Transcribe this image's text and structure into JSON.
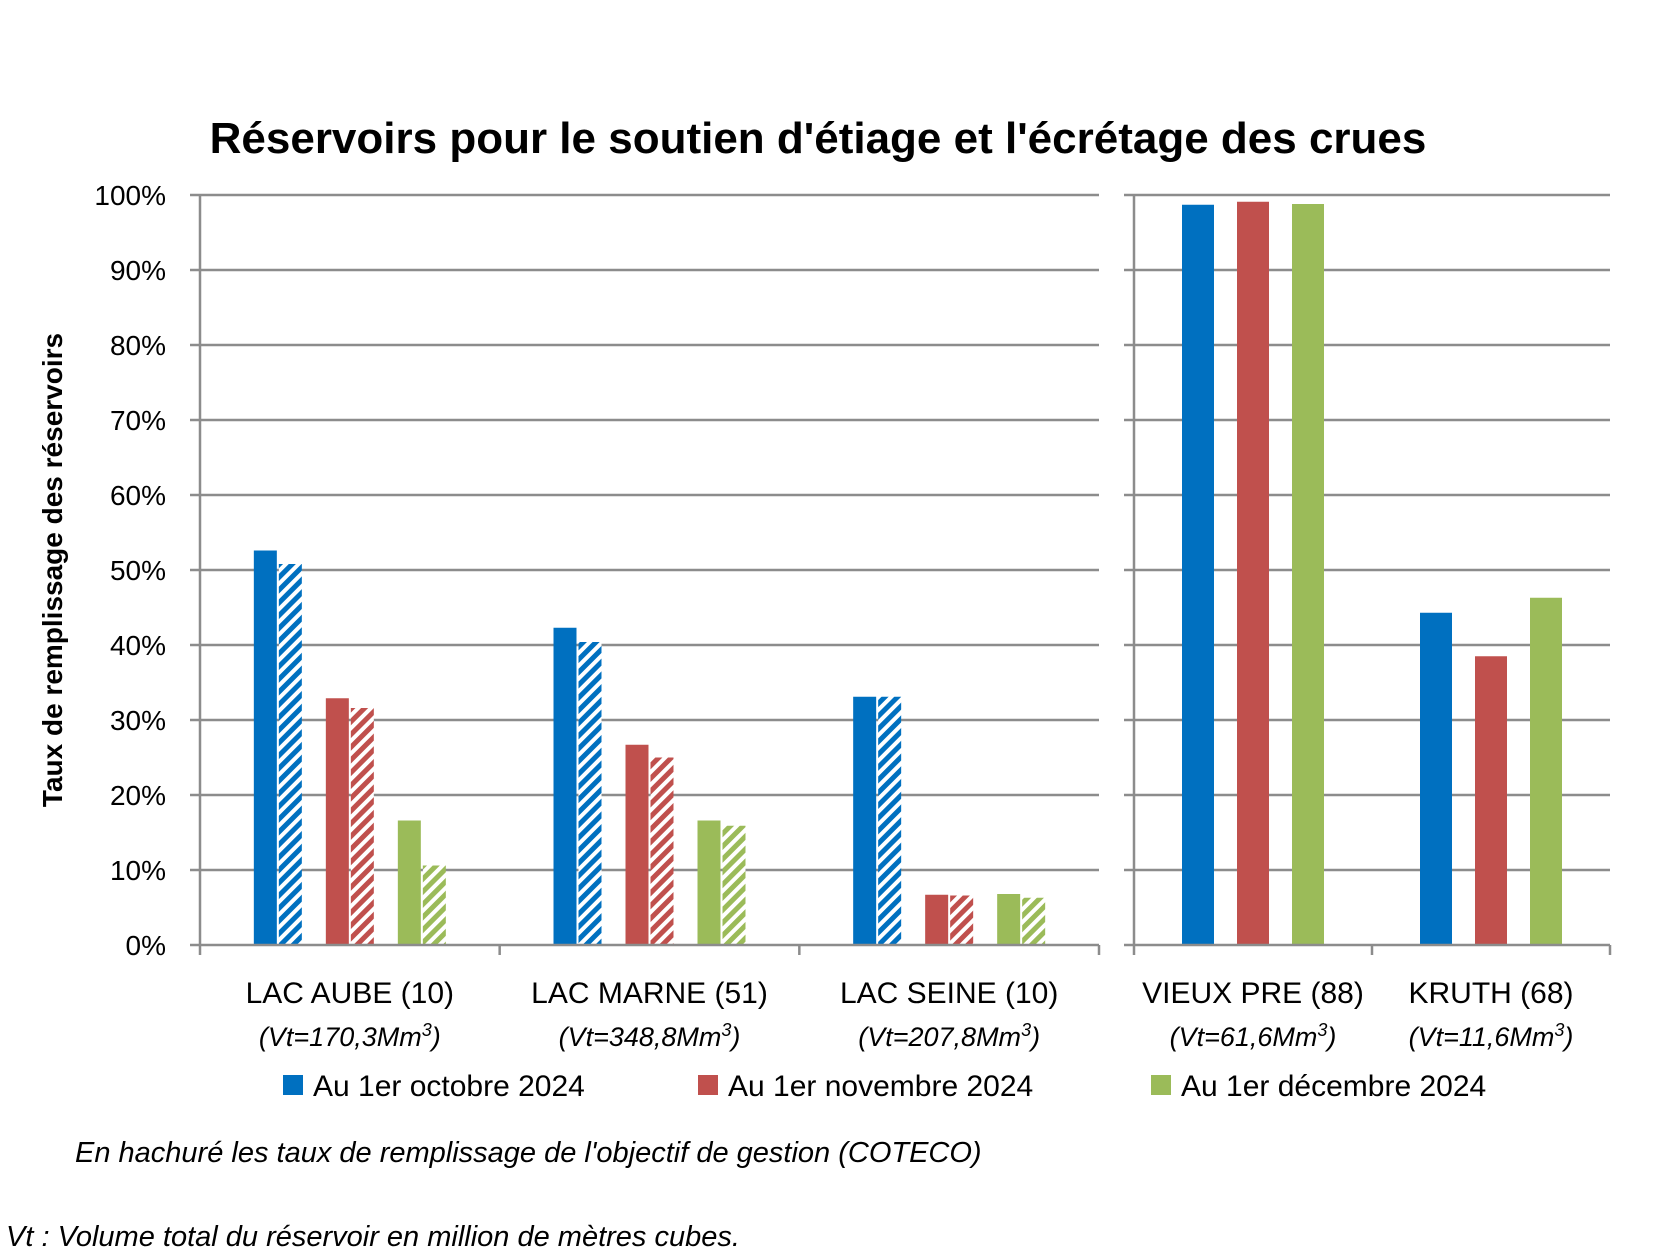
{
  "chart_data": {
    "type": "bar",
    "title": "Réservoirs pour le soutien d'étiage et l'écrétage des crues",
    "ylabel": "Taux de remplissage des réservoirs",
    "ylim": [
      0,
      100
    ],
    "yticks": [
      "0%",
      "10%",
      "20%",
      "30%",
      "40%",
      "50%",
      "60%",
      "70%",
      "80%",
      "90%",
      "100%"
    ],
    "grid": true,
    "legend_position": "bottom",
    "panels": [
      {
        "categories": [
          {
            "label": "LAC AUBE (10)",
            "volume": "(Vt=170,3Mm",
            "volume_unit_sup": "3",
            "volume_close": ")"
          },
          {
            "label": "LAC MARNE (51)",
            "volume": "(Vt=348,8Mm",
            "volume_unit_sup": "3",
            "volume_close": ")"
          },
          {
            "label": "LAC SEINE (10)",
            "volume": "(Vt=207,8Mm",
            "volume_unit_sup": "3",
            "volume_close": ")"
          }
        ],
        "series": [
          {
            "name": "Au 1er octobre 2024",
            "values": [
              52.6,
              42.3,
              33.1
            ],
            "objective": [
              50.8,
              40.4,
              33.1
            ]
          },
          {
            "name": "Au 1er novembre 2024",
            "values": [
              32.9,
              26.7,
              6.7
            ],
            "objective": [
              31.6,
              25.0,
              6.6
            ]
          },
          {
            "name": "Au 1er décembre 2024",
            "values": [
              16.6,
              16.6,
              6.8
            ],
            "objective": [
              10.6,
              15.9,
              6.3
            ]
          }
        ]
      },
      {
        "categories": [
          {
            "label": "VIEUX PRE (88)",
            "volume": "(Vt=61,6Mm",
            "volume_unit_sup": "3",
            "volume_close": ")"
          },
          {
            "label": "KRUTH (68)",
            "volume": "(Vt=11,6Mm",
            "volume_unit_sup": "3",
            "volume_close": ")"
          }
        ],
        "series": [
          {
            "name": "Au 1er octobre 2024",
            "values": [
              98.7,
              44.3
            ]
          },
          {
            "name": "Au 1er novembre 2024",
            "values": [
              99.1,
              38.5
            ]
          },
          {
            "name": "Au 1er décembre 2024",
            "values": [
              98.8,
              46.3
            ]
          }
        ]
      }
    ],
    "legend": [
      {
        "label": "Au 1er octobre 2024"
      },
      {
        "label": "Au 1er novembre 2024"
      },
      {
        "label": "Au 1er décembre 2024"
      }
    ],
    "colors": [
      "#0070C0",
      "#C0504D",
      "#9BBB59"
    ],
    "notes": [
      "En hachuré les taux de remplissage de l'objectif de gestion (COTECO)",
      "Vt : Volume total du réservoir en million de mètres cubes."
    ]
  }
}
